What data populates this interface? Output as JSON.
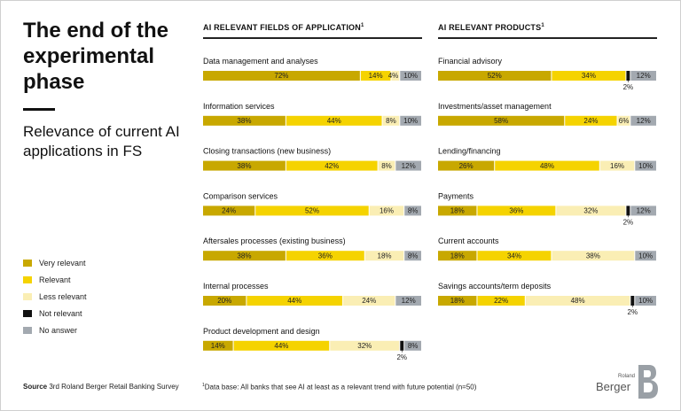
{
  "title": "The end of the experimental phase",
  "subtitle": "Relevance of current AI applications in FS",
  "colors": {
    "very_relevant": "#c8a800",
    "relevant": "#f5d300",
    "less_relevant": "#faeeb4",
    "not_relevant": "#111111",
    "no_answer": "#a3a9b0"
  },
  "legend": [
    {
      "key": "very_relevant",
      "label": "Very relevant"
    },
    {
      "key": "relevant",
      "label": "Relevant"
    },
    {
      "key": "less_relevant",
      "label": "Less relevant"
    },
    {
      "key": "not_relevant",
      "label": "Not relevant"
    },
    {
      "key": "no_answer",
      "label": "No answer"
    }
  ],
  "chart_data": [
    {
      "type": "bar",
      "stacked": true,
      "orientation": "horizontal",
      "title": "AI RELEVANT FIELDS OF APPLICATION",
      "title_sup": "1",
      "series_order": [
        "Very relevant",
        "Relevant",
        "Less relevant",
        "Not relevant",
        "No answer"
      ],
      "categories": [
        {
          "label": "Data management and analyses",
          "values": [
            72,
            14,
            4,
            0,
            10
          ]
        },
        {
          "label": "Information services",
          "values": [
            38,
            44,
            8,
            0,
            10
          ]
        },
        {
          "label": "Closing transactions (new business)",
          "values": [
            38,
            42,
            8,
            0,
            12
          ]
        },
        {
          "label": "Comparison services",
          "values": [
            24,
            52,
            16,
            0,
            8
          ]
        },
        {
          "label": "Aftersales processes (existing business)",
          "values": [
            38,
            36,
            18,
            0,
            8
          ]
        },
        {
          "label": "Internal processes",
          "values": [
            20,
            44,
            24,
            0,
            12
          ]
        },
        {
          "label": "Product development and design",
          "values": [
            14,
            44,
            32,
            2,
            8
          ]
        }
      ]
    },
    {
      "type": "bar",
      "stacked": true,
      "orientation": "horizontal",
      "title": "AI RELEVANT PRODUCTS",
      "title_sup": "1",
      "series_order": [
        "Very relevant",
        "Relevant",
        "Less relevant",
        "Not relevant",
        "No answer"
      ],
      "categories": [
        {
          "label": "Financial advisory",
          "values": [
            52,
            34,
            0,
            2,
            12
          ]
        },
        {
          "label": "Investments/asset management",
          "values": [
            58,
            24,
            6,
            0,
            12
          ]
        },
        {
          "label": "Lending/financing",
          "values": [
            26,
            48,
            16,
            0,
            10
          ]
        },
        {
          "label": "Payments",
          "values": [
            18,
            36,
            32,
            2,
            12
          ]
        },
        {
          "label": "Current accounts",
          "values": [
            18,
            34,
            38,
            0,
            10
          ]
        },
        {
          "label": "Savings accounts/term deposits",
          "values": [
            18,
            22,
            48,
            2,
            10
          ]
        }
      ]
    }
  ],
  "footer": {
    "source_label": "Source",
    "source_text": "3rd Roland Berger Retail Banking Survey",
    "note_sup": "1",
    "note_text": "Data base: All banks that see AI at least as a relevant trend with future potential (n=50)"
  },
  "logo": {
    "small": "Roland",
    "name": "Berger"
  }
}
